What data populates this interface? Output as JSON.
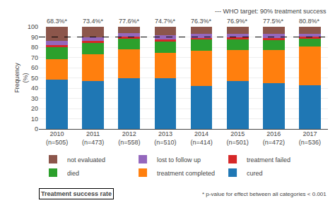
{
  "chart_data": {
    "type": "bar",
    "stacked": true,
    "categories": [
      "2010\n(n=505)",
      "2011\n(n=473)",
      "2012\n(n=558)",
      "2013\n(n=510)",
      "2014\n(n=414)",
      "2015\n(n=501)",
      "2016\n(n=472)",
      "2017\n(n=536)"
    ],
    "series": [
      {
        "name": "cured",
        "values": [
          48.0,
          47.0,
          50.0,
          50.0,
          42.0,
          47.0,
          45.0,
          43.0
        ]
      },
      {
        "name": "treatment completed",
        "values": [
          20.3,
          26.4,
          27.6,
          24.7,
          34.3,
          29.9,
          32.5,
          37.8
        ]
      },
      {
        "name": "died",
        "values": [
          11.5,
          10.5,
          10.5,
          11.0,
          11.0,
          10.5,
          9.5,
          7.5
        ]
      },
      {
        "name": "treatment failed",
        "values": [
          2.0,
          2.0,
          2.0,
          2.0,
          2.0,
          2.0,
          2.0,
          2.0
        ]
      },
      {
        "name": "lost to follow up",
        "values": [
          4.5,
          3.5,
          3.5,
          4.0,
          4.0,
          3.5,
          4.0,
          3.0
        ]
      },
      {
        "name": "not evaluated",
        "values": [
          13.7,
          10.6,
          6.4,
          8.3,
          6.7,
          7.1,
          7.0,
          6.7
        ]
      }
    ],
    "bar_labels": [
      "68.3%*",
      "73.4%*",
      "77.6%*",
      "74.7%*",
      "76.3%*",
      "76.9%*",
      "77.5%*",
      "80.8%*"
    ],
    "reference_line": {
      "value": 90,
      "label": "--- WHO target: 90% treatment success"
    },
    "annotations": [
      "Treatment success rate",
      "* p-value for effect between all categories < 0.001"
    ],
    "ylabel": "Frequency\n(%)",
    "ylim": [
      0,
      100
    ],
    "yticks": [
      0,
      10,
      20,
      30,
      40,
      50,
      60,
      70,
      80,
      90,
      100
    ],
    "grid": true,
    "legend": "bottom"
  }
}
